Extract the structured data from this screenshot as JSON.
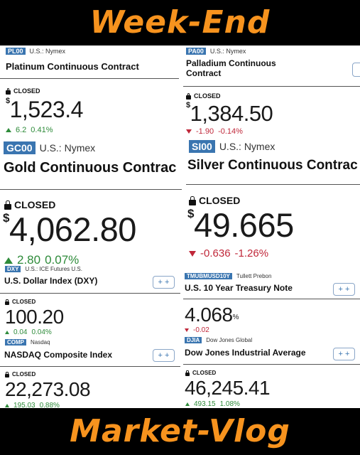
{
  "banner": {
    "top": "Week-End",
    "bottom": "Market-Vlog"
  },
  "colors": {
    "banner_text": "#f7931e",
    "up": "#2e8b3a",
    "down": "#c0283a",
    "tag_bg": "#3a75b0"
  },
  "icons": {
    "lock": "lock-icon",
    "up": "triangle-up-icon",
    "down": "triangle-down-icon"
  },
  "cards": {
    "platinum": {
      "tag": "PL00",
      "exchange": "U.S.: Nymex",
      "name": "Platinum Continuous Contract",
      "status": "CLOSED",
      "currency": "$",
      "price": "1,523.4",
      "change": "6.2",
      "change_pct": "0.41%"
    },
    "palladium": {
      "tag": "PA00",
      "exchange": "U.S.: Nymex",
      "name_line1": "Palladium Continuous",
      "name_line2": "Contract",
      "status": "CLOSED",
      "currency": "$",
      "price": "1,384.50",
      "change": "-1.90",
      "change_pct": "-0.14%"
    },
    "gold": {
      "tag": "GC00",
      "exchange": "U.S.: Nymex",
      "name": "Gold Continuous Contrac",
      "status": "CLOSED",
      "currency": "$",
      "price": "4,062.80",
      "change": "2.80",
      "change_pct": "0.07%"
    },
    "silver": {
      "tag": "SI00",
      "exchange": "U.S.: Nymex",
      "name": "Silver Continuous Contrac",
      "status": "CLOSED",
      "currency": "$",
      "price": "49.665",
      "change": "-0.636",
      "change_pct": "-1.26%"
    },
    "dxy": {
      "tag": "DXY",
      "exchange": "U.S.: ICE Futures U.S.",
      "name": "U.S. Dollar Index (DXY)",
      "status": "CLOSED",
      "price": "100.20",
      "change": "0.04",
      "change_pct": "0.04%",
      "button": "+ +"
    },
    "tnote": {
      "tag": "TMUBMUSD10Y",
      "exchange": "Tullett Prebon",
      "name": "U.S. 10 Year Treasury Note",
      "price": "4.068",
      "unit": "%",
      "change": "-0.02",
      "button": "+ +"
    },
    "nasdaq": {
      "tag": "COMP",
      "exchange": "Nasdaq",
      "name": "NASDAQ Composite Index",
      "status": "CLOSED",
      "price": "22,273.08",
      "change": "195.03",
      "change_pct": "0.88%",
      "button": "+ +"
    },
    "djia": {
      "tag": "DJIA",
      "exchange": "Dow Jones Global",
      "name": "Dow Jones Industrial Average",
      "status": "CLOSED",
      "price": "46,245.41",
      "change": "493.15",
      "change_pct": "1.08%",
      "button": "+ +"
    }
  }
}
